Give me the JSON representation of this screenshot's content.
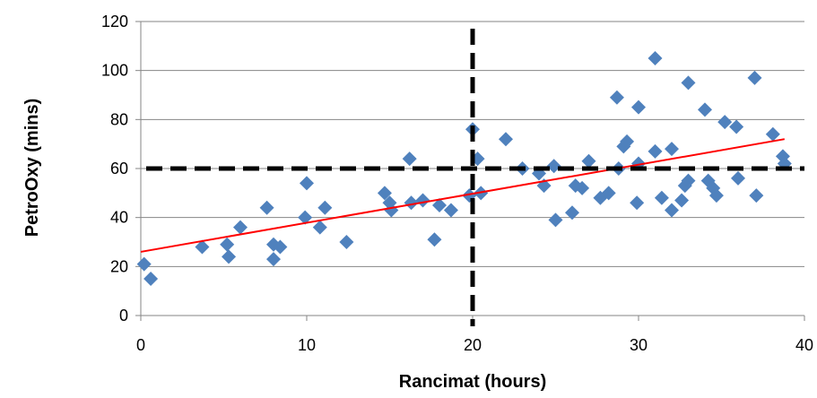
{
  "chart_data": {
    "type": "scatter",
    "title": "",
    "xlabel": "Rancimat (hours)",
    "ylabel": "PetroOxy (mins)",
    "xlim": [
      0,
      40
    ],
    "ylim": [
      0,
      120
    ],
    "x_ticks": [
      0,
      10,
      20,
      30,
      40
    ],
    "y_ticks": [
      0,
      20,
      40,
      60,
      80,
      100,
      120
    ],
    "grid": "horizontal",
    "legend": "none",
    "series": [
      {
        "marker": "diamond",
        "color": "#4F81BD",
        "points": [
          [
            0.2,
            21
          ],
          [
            0.6,
            15
          ],
          [
            3.7,
            28
          ],
          [
            5.2,
            29
          ],
          [
            5.3,
            24
          ],
          [
            6.0,
            36
          ],
          [
            7.6,
            44
          ],
          [
            8.0,
            29
          ],
          [
            8.0,
            23
          ],
          [
            8.4,
            28
          ],
          [
            9.9,
            40
          ],
          [
            10.0,
            54
          ],
          [
            10.8,
            36
          ],
          [
            11.1,
            44
          ],
          [
            12.4,
            30
          ],
          [
            14.7,
            50
          ],
          [
            15.0,
            46
          ],
          [
            15.1,
            43
          ],
          [
            16.2,
            64
          ],
          [
            16.3,
            46
          ],
          [
            17.0,
            47
          ],
          [
            17.7,
            31
          ],
          [
            18.0,
            45
          ],
          [
            18.7,
            43
          ],
          [
            19.8,
            49
          ],
          [
            20.0,
            76
          ],
          [
            20.3,
            64
          ],
          [
            20.5,
            50
          ],
          [
            22.0,
            72
          ],
          [
            23.0,
            60
          ],
          [
            24.0,
            58
          ],
          [
            24.3,
            53
          ],
          [
            24.9,
            61
          ],
          [
            25.0,
            39
          ],
          [
            26.0,
            42
          ],
          [
            26.2,
            53
          ],
          [
            26.6,
            52
          ],
          [
            27.0,
            63
          ],
          [
            27.7,
            48
          ],
          [
            28.2,
            50
          ],
          [
            28.7,
            89
          ],
          [
            28.8,
            60
          ],
          [
            29.1,
            69
          ],
          [
            29.3,
            71
          ],
          [
            29.9,
            46
          ],
          [
            30.0,
            62
          ],
          [
            30.0,
            85
          ],
          [
            31.0,
            105
          ],
          [
            31.0,
            67
          ],
          [
            31.4,
            48
          ],
          [
            32.0,
            68
          ],
          [
            32.0,
            43
          ],
          [
            32.6,
            47
          ],
          [
            32.8,
            53
          ],
          [
            33.0,
            55
          ],
          [
            33.0,
            95
          ],
          [
            34.0,
            84
          ],
          [
            34.2,
            55
          ],
          [
            34.5,
            52
          ],
          [
            34.7,
            49
          ],
          [
            35.2,
            79
          ],
          [
            35.9,
            77
          ],
          [
            36.0,
            56
          ],
          [
            37.0,
            97
          ],
          [
            37.1,
            49
          ],
          [
            38.1,
            74
          ],
          [
            38.7,
            65
          ],
          [
            38.8,
            62
          ]
        ]
      }
    ],
    "trendline": {
      "color": "#FF0000",
      "from": [
        0,
        26
      ],
      "to": [
        38.8,
        72
      ]
    },
    "reference_lines": [
      {
        "axis": "x",
        "value": 20,
        "color": "#000000",
        "style": "dashed"
      },
      {
        "axis": "y",
        "value": 60,
        "color": "#000000",
        "style": "dashed"
      }
    ]
  }
}
